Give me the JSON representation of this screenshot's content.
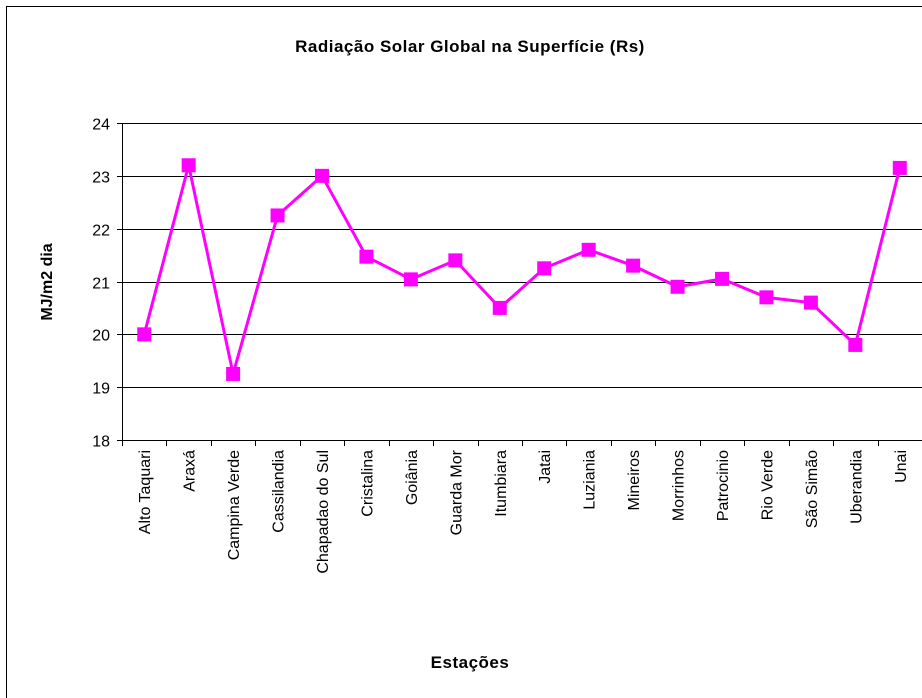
{
  "chart_data": {
    "type": "line",
    "title": "Radiação Solar Global na Superfície (Rs)",
    "x_label": "Estações",
    "y_label": "MJ/m2 dia",
    "categories": [
      "Alto Taquari",
      "Araxá",
      "Campina Verde",
      "Cassilandia",
      "Chapadao do Sul",
      "Cristalina",
      "Goiânia",
      "Guarda Mor",
      "Itumbiara",
      "Jatai",
      "Luziania",
      "Mineiros",
      "Morrinhos",
      "Patrocinio",
      "Rio Verde",
      "São Simão",
      "Uberandia",
      "Unai"
    ],
    "series": [
      {
        "name": "Rs",
        "color": "#ff00ff",
        "values": [
          20.0,
          23.2,
          19.25,
          22.25,
          23.0,
          21.47,
          21.04,
          21.4,
          20.5,
          21.25,
          21.6,
          21.3,
          20.9,
          21.05,
          20.7,
          20.6,
          19.8,
          23.15
        ]
      }
    ],
    "ylim": [
      18,
      24
    ],
    "yticks": [
      18,
      19,
      20,
      21,
      22,
      23,
      24
    ],
    "grid": true
  }
}
